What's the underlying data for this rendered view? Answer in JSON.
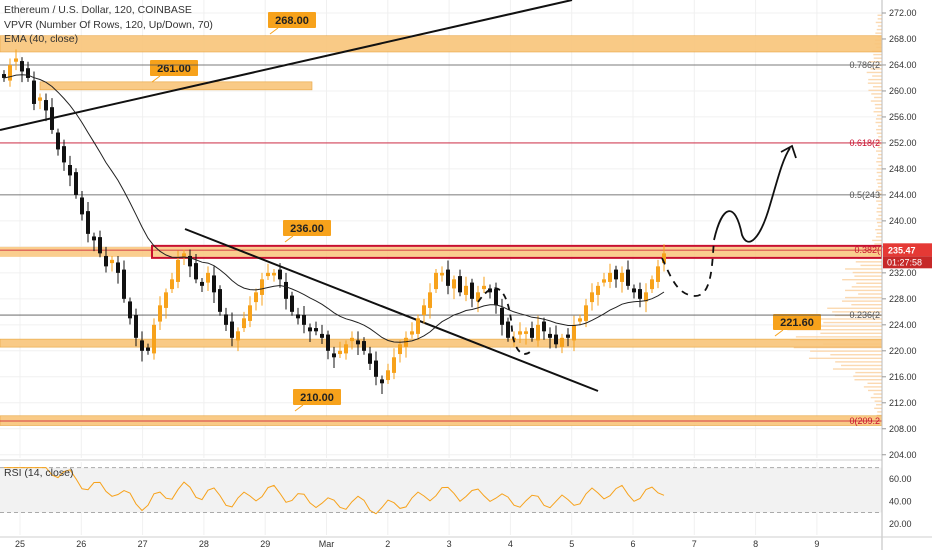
{
  "legend": {
    "title": "Ethereum / U.S. Dollar, 120, COINBASE",
    "vpvr": "VPVR (Number Of Rows, 120, Up/Down, 70)",
    "ema": "EMA (40, close)",
    "rsi": "RSI (14, close)"
  },
  "colors": {
    "bull": "#f7a21b",
    "bear": "#111111",
    "zone": "#f9c57a",
    "fib_red": "#c8102e",
    "price_tag": "#e53935",
    "rsi_line": "#f7a21b"
  },
  "chart_data": {
    "type": "candlestick",
    "y_axis": {
      "ticks": [
        "272.00",
        "268.00",
        "264.00",
        "260.00",
        "256.00",
        "252.00",
        "248.00",
        "244.00",
        "240.00",
        "236.00",
        "232.00",
        "228.00",
        "224.00",
        "220.00",
        "216.00",
        "212.00",
        "208.00",
        "204.00"
      ],
      "range": [
        203.5,
        274
      ]
    },
    "x_axis": {
      "labels": [
        "25",
        "26",
        "27",
        "28",
        "29",
        "Mar",
        "2",
        "3",
        "4",
        "5",
        "6",
        "7",
        "8",
        "9"
      ]
    },
    "current_price": "235.47",
    "countdown": "01:27:58",
    "zones": [
      {
        "label": "268.00",
        "low": 266.0,
        "high": 268.5
      },
      {
        "label": "261.00",
        "low": 260.6,
        "high": 261.4
      },
      {
        "label": "236.00",
        "low": 235.0,
        "high": 236.0
      },
      {
        "label": "221.60",
        "low": 220.8,
        "high": 221.8
      },
      {
        "label": "210.00",
        "low": 208.5,
        "high": 210.0
      }
    ],
    "fib_levels": [
      {
        "label": "0.786(2",
        "price": 264.0,
        "color": "#555555"
      },
      {
        "label": "0.618(2",
        "price": 252.0,
        "color": "#c8102e"
      },
      {
        "label": "0.5(243",
        "price": 244.0,
        "color": "#555555"
      },
      {
        "label": "0.382(",
        "price": 235.5,
        "color": "#c8102e"
      },
      {
        "label": "0.236(2",
        "price": 225.5,
        "color": "#555555"
      },
      {
        "label": "0(209.2",
        "price": 209.2,
        "color": "#c8102e"
      }
    ],
    "rsi": {
      "ticks": [
        "60.00",
        "40.00",
        "20.00"
      ],
      "range": [
        10,
        75
      ],
      "bands": [
        70,
        30
      ]
    }
  }
}
